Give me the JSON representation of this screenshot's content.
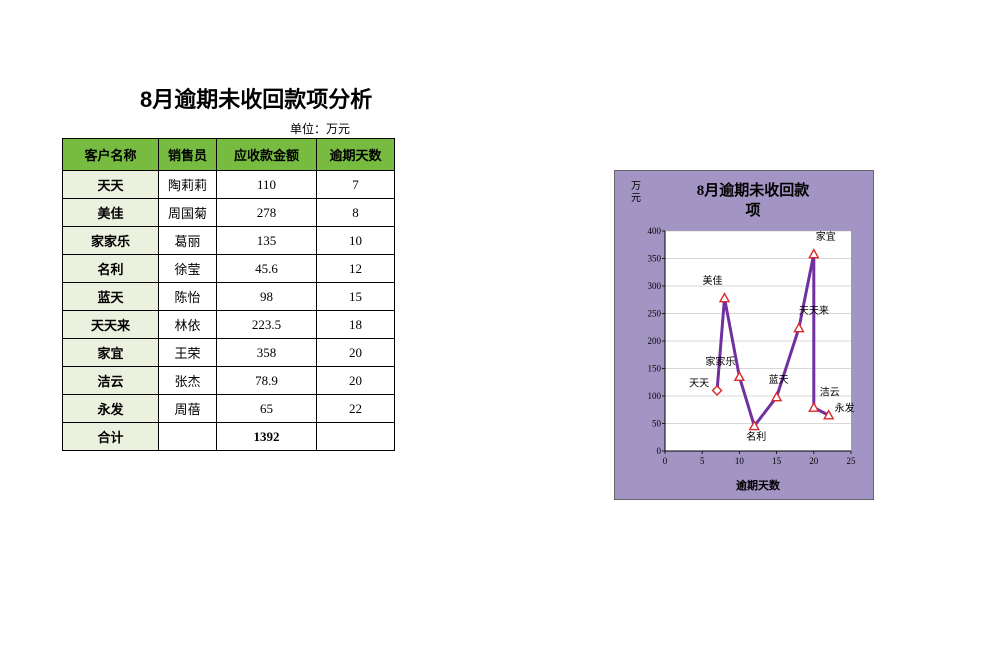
{
  "title": "8月逾期未收回款项分析",
  "unit_label": "单位：万元",
  "table": {
    "columns": [
      "客户名称",
      "销售员",
      "应收款金额",
      "逾期天数"
    ],
    "rows": [
      {
        "customer": "天天",
        "sales": "陶莉莉",
        "amount": "110",
        "days": "7"
      },
      {
        "customer": "美佳",
        "sales": "周国菊",
        "amount": "278",
        "days": "8"
      },
      {
        "customer": "家家乐",
        "sales": "葛丽",
        "amount": "135",
        "days": "10"
      },
      {
        "customer": "名利",
        "sales": "徐莹",
        "amount": "45.6",
        "days": "12"
      },
      {
        "customer": "蓝天",
        "sales": "陈怡",
        "amount": "98",
        "days": "15"
      },
      {
        "customer": "天天来",
        "sales": "林依",
        "amount": "223.5",
        "days": "18"
      },
      {
        "customer": "家宜",
        "sales": "王荣",
        "amount": "358",
        "days": "20"
      },
      {
        "customer": "洁云",
        "sales": "张杰",
        "amount": "78.9",
        "days": "20"
      },
      {
        "customer": "永发",
        "sales": "周蓓",
        "amount": "65",
        "days": "22"
      }
    ],
    "total": {
      "label": "合计",
      "amount": "1392"
    }
  },
  "chart": {
    "type": "line",
    "title": "8月逾期未收回款项",
    "ylabel": "万元",
    "xlabel": "逾期天数",
    "xlim": [
      0,
      25
    ],
    "ylim": [
      0,
      400
    ],
    "xtick_step": 5,
    "ytick_step": 50,
    "background_color": "#a295c3",
    "plot_bg_color": "#ffffff",
    "grid_color": "#b0b0b0",
    "line_color": "#7030a0",
    "line_width": 3,
    "marker_color": "#d82a2a",
    "marker_fill": "#ffffff",
    "marker_size": 9,
    "title_fontsize": 15,
    "title_font": "楷体",
    "label_fontsize": 10,
    "tick_fontsize": 9,
    "data": [
      {
        "x": 7,
        "y": 110,
        "label": "天天",
        "marker": "diamond",
        "lx": -28,
        "ly": -4
      },
      {
        "x": 8,
        "y": 278,
        "label": "美佳",
        "marker": "triangle",
        "lx": -22,
        "ly": -14
      },
      {
        "x": 10,
        "y": 135,
        "label": "家家乐",
        "marker": "triangle",
        "lx": -34,
        "ly": -12
      },
      {
        "x": 12,
        "y": 45.6,
        "label": "名利",
        "marker": "triangle",
        "lx": -8,
        "ly": 14
      },
      {
        "x": 15,
        "y": 98,
        "label": "蓝天",
        "marker": "triangle",
        "lx": -8,
        "ly": -14
      },
      {
        "x": 18,
        "y": 223.5,
        "label": "天天来",
        "marker": "triangle",
        "lx": 0,
        "ly": -14
      },
      {
        "x": 20,
        "y": 358,
        "label": "家宜",
        "marker": "triangle",
        "lx": 2,
        "ly": -14
      },
      {
        "x": 20,
        "y": 78.9,
        "label": "洁云",
        "marker": "triangle",
        "lx": 6,
        "ly": -12
      },
      {
        "x": 22,
        "y": 65,
        "label": "永发",
        "marker": "triangle",
        "lx": 6,
        "ly": -4
      }
    ]
  }
}
